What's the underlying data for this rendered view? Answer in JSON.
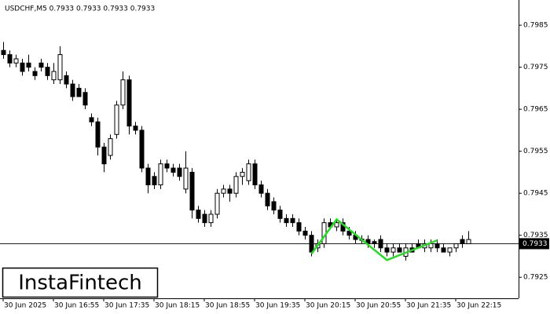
{
  "chart_data": {
    "type": "candlestick",
    "title": "USDCHF,M5  0.7933 0.7933 0.7933 0.7933",
    "watermark": "InstaFintech",
    "categories": [
      "30 Jun 2025",
      null,
      null,
      null,
      null,
      null,
      null,
      null,
      "30 Jun 16:55",
      null,
      null,
      null,
      null,
      null,
      null,
      null,
      "30 Jun 17:35",
      null,
      null,
      null,
      null,
      null,
      null,
      null,
      "30 Jun 18:15",
      null,
      null,
      null,
      null,
      null,
      null,
      null,
      "30 Jun 18:55",
      null,
      null,
      null,
      null,
      null,
      null,
      null,
      "30 Jun 19:35",
      null,
      null,
      null,
      null,
      null,
      null,
      null,
      "30 Jun 20:15",
      null,
      null,
      null,
      null,
      null,
      null,
      null,
      "30 Jun 20:55",
      null,
      null,
      null,
      null,
      null,
      null,
      null,
      "30 Jun 21:35",
      null,
      null,
      null,
      null,
      null,
      null,
      null,
      "30 Jun 22:15",
      null,
      null
    ],
    "open": [
      0.7979,
      0.7978,
      0.7976,
      0.7976,
      0.7976,
      0.7974,
      0.7976,
      0.7975,
      0.7972,
      0.7972,
      0.7973,
      0.7971,
      0.797,
      0.7969,
      0.7963,
      0.7962,
      0.7956,
      0.7954,
      0.7959,
      0.7966,
      0.7972,
      0.7961,
      0.796,
      0.7951,
      0.7949,
      0.7947,
      0.7952,
      0.7951,
      0.7951,
      0.7946,
      0.795,
      0.7941,
      0.794,
      0.7938,
      0.794,
      0.7945,
      0.7946,
      0.7945,
      0.7949,
      0.7948,
      0.7952,
      0.7947,
      0.7945,
      0.7943,
      0.7941,
      0.7939,
      0.7939,
      0.7938,
      0.7936,
      0.7935,
      0.7932,
      0.7933,
      0.7938,
      0.7937,
      0.7938,
      0.7936,
      0.7935,
      0.79341,
      0.7934,
      0.79335,
      0.7934,
      0.7932,
      0.7931,
      0.7932,
      0.793,
      0.7932,
      0.7933,
      0.7932,
      0.7932,
      0.7933,
      0.7932,
      0.7931,
      0.7932,
      0.7934,
      0.7933
    ],
    "high": [
      0.7981,
      0.7979,
      0.7978,
      0.7977,
      0.7978,
      0.7975,
      0.7977,
      0.7976,
      0.7976,
      0.798,
      0.7974,
      0.7972,
      0.7971,
      0.797,
      0.7964,
      0.7963,
      0.7957,
      0.7959,
      0.7967,
      0.7974,
      0.7973,
      0.7962,
      0.7961,
      0.7952,
      0.795,
      0.7953,
      0.7953,
      0.7952,
      0.7952,
      0.7955,
      0.7951,
      0.7942,
      0.7941,
      0.7941,
      0.7946,
      0.7947,
      0.7947,
      0.795,
      0.7951,
      0.7953,
      0.7953,
      0.7948,
      0.7946,
      0.7944,
      0.7942,
      0.794,
      0.794,
      0.7939,
      0.7937,
      0.7936,
      0.7934,
      0.7939,
      0.7939,
      0.7939,
      0.7939,
      0.7937,
      0.7936,
      0.7935,
      0.7935,
      0.7934,
      0.7935,
      0.7933,
      0.7933,
      0.7933,
      0.7933,
      0.7933,
      0.7934,
      0.7934,
      0.7934,
      0.7934,
      0.7933,
      0.7932,
      0.7933,
      0.7935,
      0.7936
    ],
    "low": [
      0.7977,
      0.7975,
      0.7975,
      0.7973,
      0.7974,
      0.7972,
      0.7974,
      0.7972,
      0.7971,
      0.7971,
      0.797,
      0.7967,
      0.7968,
      0.7965,
      0.7961,
      0.7954,
      0.795,
      0.7953,
      0.7958,
      0.7965,
      0.7959,
      0.7959,
      0.795,
      0.7945,
      0.7946,
      0.7946,
      0.795,
      0.7949,
      0.7948,
      0.7945,
      0.7939,
      0.7938,
      0.7937,
      0.7937,
      0.7939,
      0.7944,
      0.7943,
      0.7944,
      0.7947,
      0.7947,
      0.7946,
      0.7944,
      0.7941,
      0.794,
      0.7938,
      0.7937,
      0.7937,
      0.7935,
      0.7934,
      0.793,
      0.7931,
      0.7932,
      0.7937,
      0.7936,
      0.7935,
      0.7934,
      0.7933,
      0.7933,
      0.7932,
      0.7932,
      0.7931,
      0.793,
      0.793,
      0.7931,
      0.7929,
      0.7931,
      0.7932,
      0.7931,
      0.7931,
      0.7931,
      0.7931,
      0.793,
      0.7931,
      0.7932,
      0.7933
    ],
    "close": [
      0.7978,
      0.7976,
      0.7977,
      0.7974,
      0.7975,
      0.7973,
      0.7975,
      0.7973,
      0.7974,
      0.7978,
      0.7971,
      0.7968,
      0.7968,
      0.7966,
      0.7962,
      0.7956,
      0.7952,
      0.7958,
      0.7966,
      0.7972,
      0.7961,
      0.796,
      0.7951,
      0.7947,
      0.7947,
      0.7952,
      0.7951,
      0.795,
      0.7949,
      0.7951,
      0.7941,
      0.7939,
      0.7938,
      0.794,
      0.7945,
      0.7946,
      0.7945,
      0.7949,
      0.795,
      0.7952,
      0.7947,
      0.7945,
      0.7942,
      0.7941,
      0.7939,
      0.7938,
      0.7938,
      0.7936,
      0.7935,
      0.7931,
      0.7933,
      0.7938,
      0.7937,
      0.7938,
      0.7936,
      0.7935,
      0.7934,
      0.79338,
      0.7933,
      0.7933,
      0.7932,
      0.7931,
      0.7932,
      0.7931,
      0.7932,
      0.7931,
      0.7932,
      0.7933,
      0.7933,
      0.7932,
      0.7931,
      0.7932,
      0.7933,
      0.7933,
      0.7934
    ],
    "ylim": [
      0.792,
      0.7991
    ],
    "yticks": [
      0.7925,
      0.7935,
      0.7945,
      0.7955,
      0.7965,
      0.7975,
      0.7985
    ],
    "current_price": 0.7933,
    "pattern": {
      "color": "#22dd22",
      "x": [
        49,
        53,
        61,
        69
      ],
      "values": [
        0.79306,
        0.79388,
        0.79291,
        0.79338
      ]
    }
  }
}
